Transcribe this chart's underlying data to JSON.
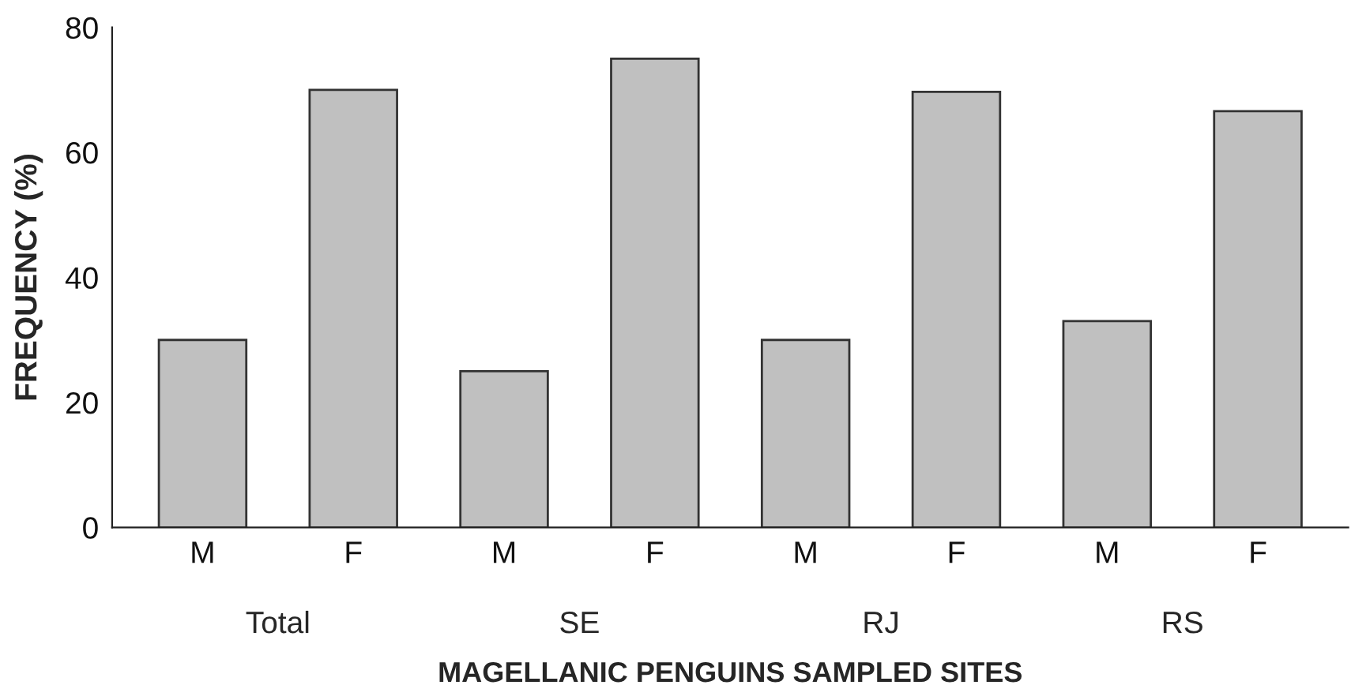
{
  "chart_data": {
    "type": "bar",
    "xlabel": "MAGELLANIC PENGUINS SAMPLED SITES",
    "ylabel": "FREQUENCY (%)",
    "categories": [
      "M",
      "F",
      "M",
      "F",
      "M",
      "F",
      "M",
      "F"
    ],
    "values": [
      30,
      70,
      25,
      75,
      30,
      69.7,
      33,
      66.6
    ],
    "color": "#c0c0c0",
    "ylim": [
      0,
      80
    ],
    "yticks": [
      0,
      20,
      40,
      60,
      80
    ],
    "annotations": [
      "Total",
      "SE",
      "RJ",
      "RS"
    ],
    "grid": false,
    "legend": false
  }
}
